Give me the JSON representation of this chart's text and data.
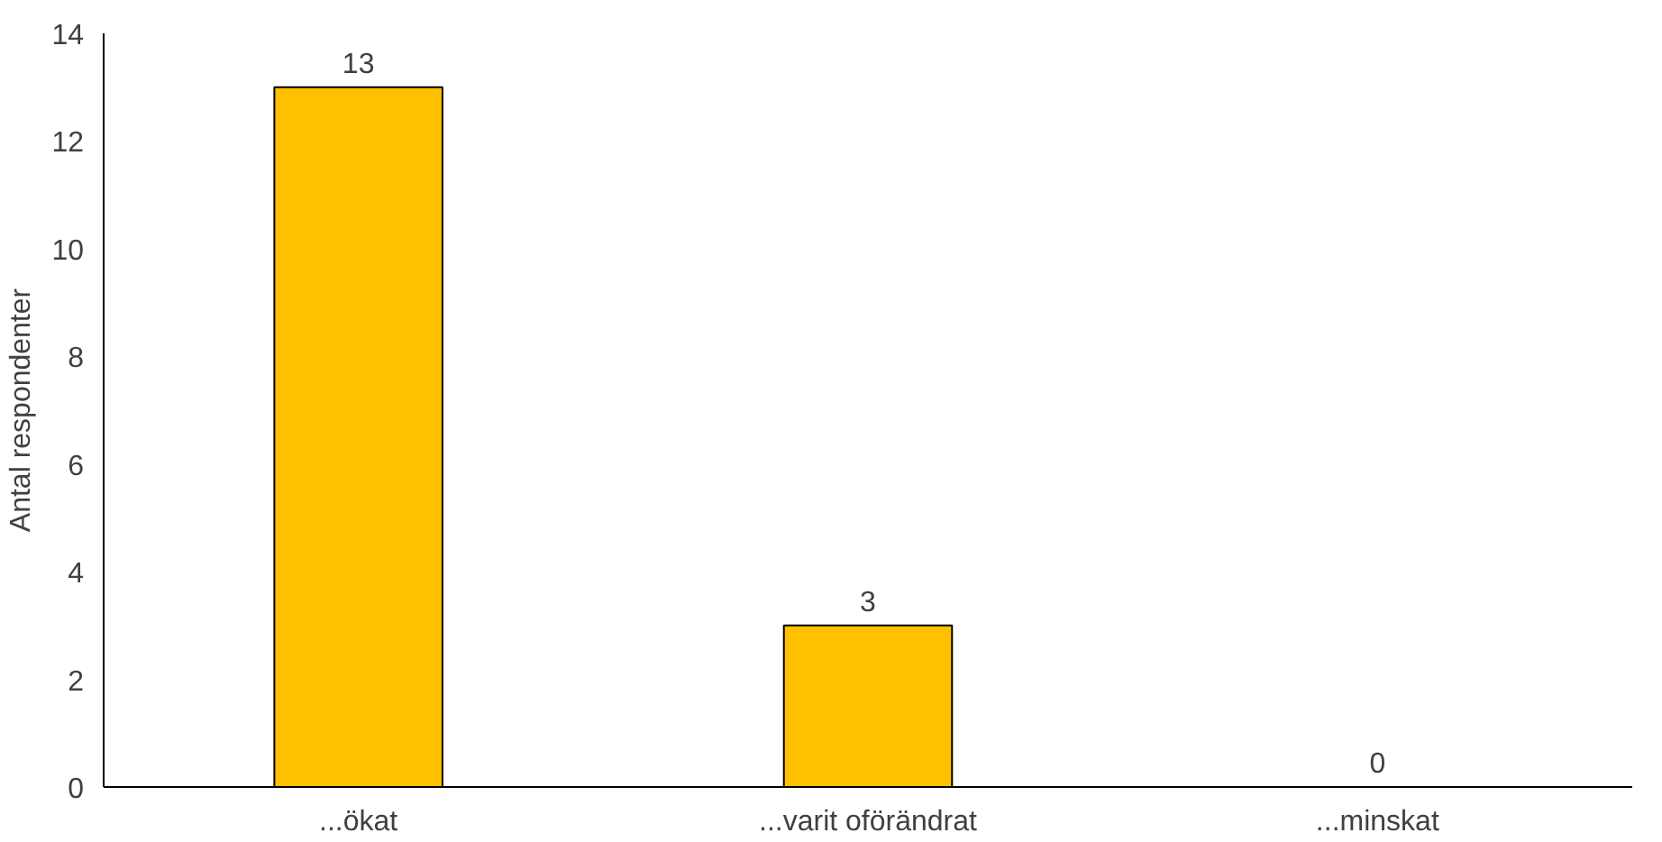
{
  "chart_data": {
    "type": "bar",
    "ylabel": "Antal respondenter",
    "categories": [
      "...ökat",
      "...varit oförändrat",
      "...minskat"
    ],
    "values": [
      13,
      3,
      0
    ],
    "color": "#ffc000",
    "ylim": [
      0,
      14
    ],
    "yticks": [
      0,
      2,
      4,
      6,
      8,
      10,
      12,
      14
    ],
    "data_labels": true,
    "grid": false
  }
}
